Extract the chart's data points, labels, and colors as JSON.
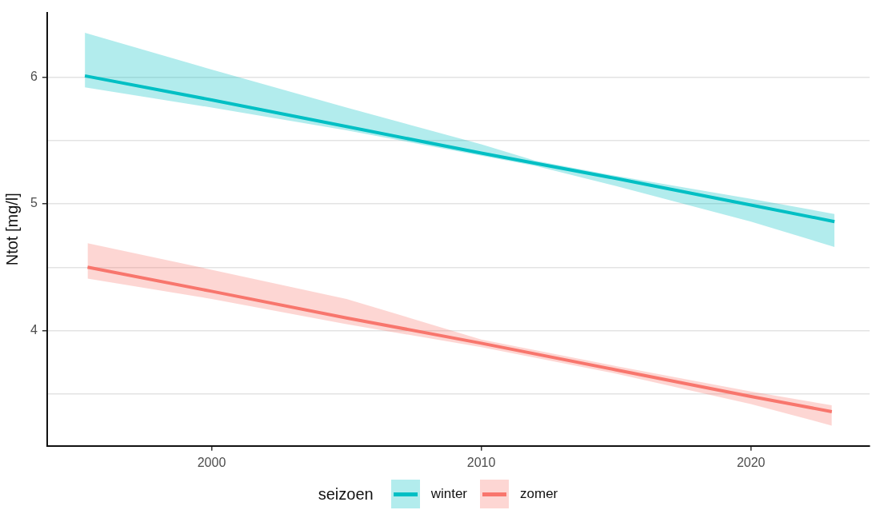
{
  "chart_data": {
    "type": "line",
    "ylabel": "Ntot [mg/l]",
    "legend_title": "seizoen",
    "legend": "bottom",
    "grid": "y",
    "marker": "none",
    "xlim": [
      1993.9,
      2024.4
    ],
    "xticks": [
      2000,
      2010,
      2020
    ],
    "ylim": [
      3.09,
      6.51
    ],
    "yticks": [
      {
        "value": 3.5,
        "label": null
      },
      4,
      {
        "value": 4.5,
        "label": null
      },
      5,
      {
        "value": 5.5,
        "label": null
      },
      6
    ],
    "series": [
      {
        "name": "winter",
        "color": "#00bfc4",
        "x": [
          1995.3,
          2000,
          2005,
          2010,
          2012,
          2015,
          2020,
          2023.1
        ],
        "values": [
          6.01,
          5.82,
          5.61,
          5.4,
          5.32,
          5.2,
          4.99,
          4.86
        ],
        "lower": [
          5.92,
          5.76,
          5.58,
          5.38,
          5.3,
          5.14,
          4.86,
          4.66
        ],
        "upper": [
          6.35,
          6.06,
          5.76,
          5.47,
          5.34,
          5.22,
          5.04,
          4.92
        ]
      },
      {
        "name": "zomer",
        "color": "#f8766d",
        "x": [
          1995.4,
          2000,
          2005,
          2010,
          2015,
          2020,
          2023
        ],
        "values": [
          4.5,
          4.31,
          4.1,
          3.9,
          3.69,
          3.48,
          3.36
        ],
        "lower": [
          4.41,
          4.25,
          4.05,
          3.87,
          3.66,
          3.42,
          3.25
        ],
        "upper": [
          4.69,
          4.48,
          4.25,
          3.93,
          3.72,
          3.52,
          3.41
        ]
      }
    ]
  }
}
